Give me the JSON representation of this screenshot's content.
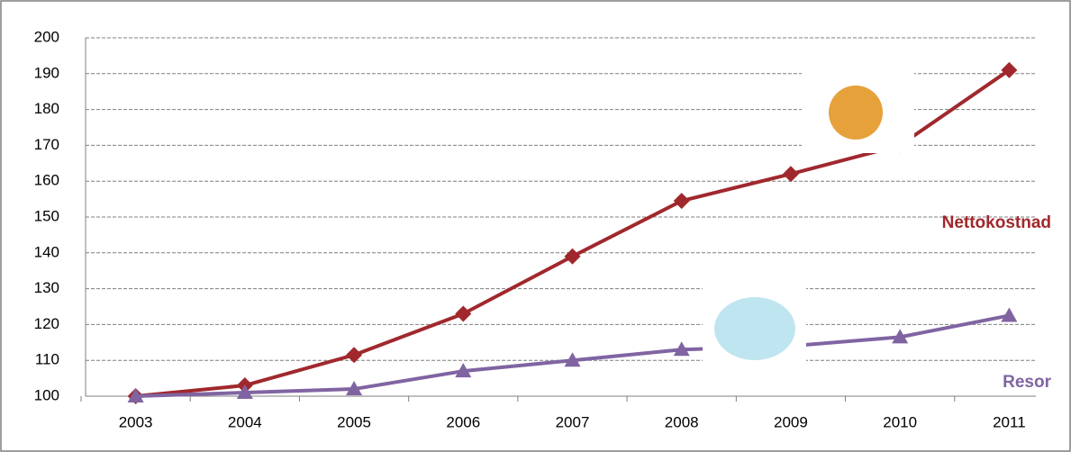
{
  "chart_data": {
    "type": "line",
    "categories": [
      "2003",
      "2004",
      "2005",
      "2006",
      "2007",
      "2008",
      "2009",
      "2010",
      "2011"
    ],
    "series": [
      {
        "name": "Nettokostnad",
        "color": "#a0282d",
        "marker": "diamond",
        "values": [
          100,
          103,
          111.5,
          123,
          139,
          154.5,
          162,
          170,
          191
        ]
      },
      {
        "name": "Resor",
        "color": "#8064a2",
        "marker": "triangle",
        "values": [
          100,
          101,
          102,
          107,
          110,
          113,
          114,
          116.5,
          122.5
        ]
      }
    ],
    "ylim": [
      100,
      200
    ],
    "yticks": [
      100,
      110,
      120,
      130,
      140,
      150,
      160,
      170,
      180,
      190,
      200
    ],
    "grid": true
  }
}
